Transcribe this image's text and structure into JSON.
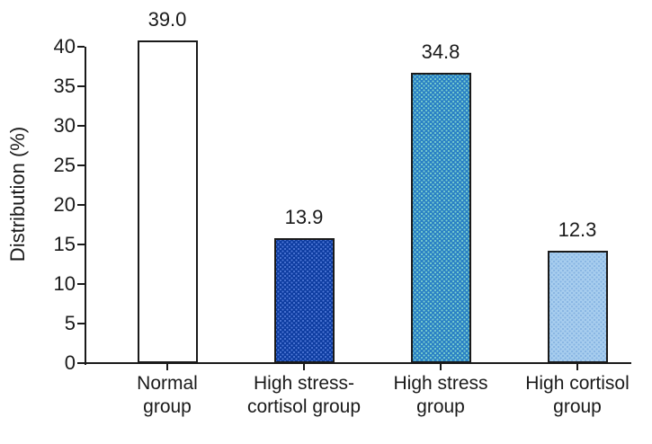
{
  "figure": {
    "background": "#ffffff",
    "text_color": "#1a1a1a",
    "axis_color": "#1a1a1a"
  },
  "chart_data": {
    "type": "bar",
    "title": "",
    "xlabel": "",
    "ylabel": "Distribution (%)",
    "categories": [
      "Normal group",
      "High stress-cortisol group",
      "High stress group",
      "High cortisol group"
    ],
    "category_lines": [
      [
        "Normal",
        "group"
      ],
      [
        "High stress-",
        "cortisol group"
      ],
      [
        "High stress",
        "group"
      ],
      [
        "High cortisol",
        "group"
      ]
    ],
    "values": [
      39.0,
      13.9,
      34.8,
      12.3
    ],
    "value_labels": [
      "39.0",
      "13.9",
      "34.8",
      "12.3"
    ],
    "ylim": [
      0,
      40
    ],
    "ytick_step": 5,
    "ytick_labels": [
      "0",
      "5",
      "10",
      "15",
      "20",
      "25",
      "30",
      "35",
      "40"
    ],
    "grid": "off",
    "legend": "none",
    "bar_styles": [
      {
        "fill": "#ffffff",
        "dots": null
      },
      {
        "fill": "#0e3da1",
        "dots": "#4f78d6"
      },
      {
        "fill": "#2a80c5",
        "dots": "#7ed2cd"
      },
      {
        "fill": "#a7cdee",
        "dots": "#85b3e1"
      }
    ],
    "drawn_values": [
      40.8,
      15.8,
      36.7,
      14.2
    ]
  }
}
